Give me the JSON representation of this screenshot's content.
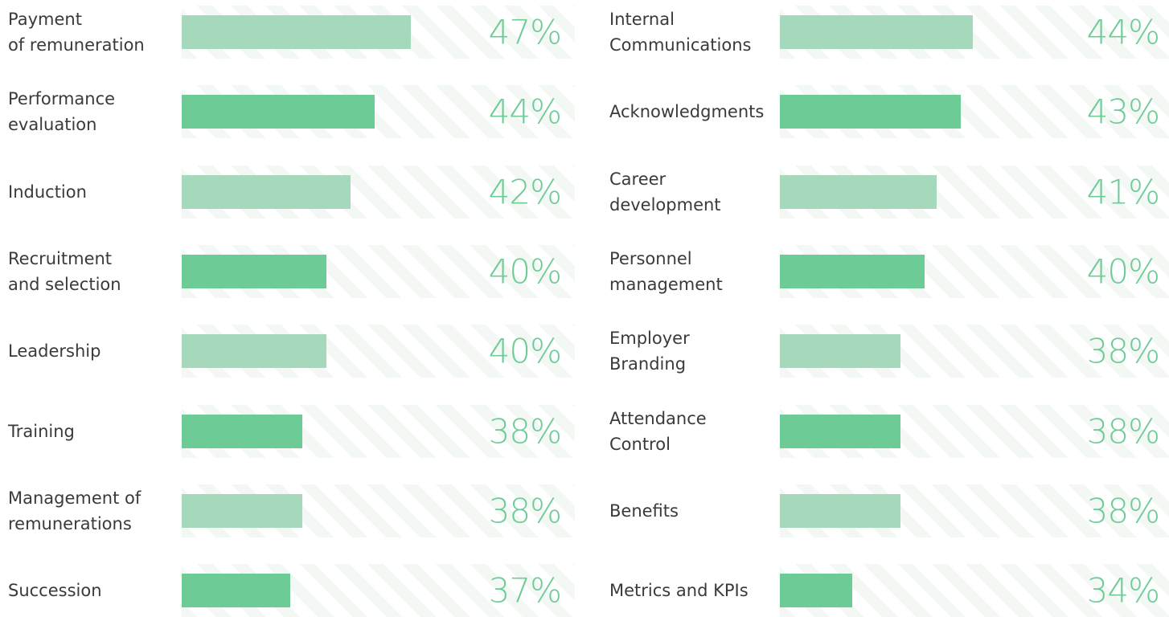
{
  "chart_data": [
    {
      "type": "bar",
      "categories": [
        "Payment\nof remuneration",
        "Performance\nevaluation",
        "Induction",
        "Recruitment\nand selection",
        "Leadership",
        "Training",
        "Management of\nremunerations",
        "Succession"
      ],
      "values": [
        47,
        44,
        42,
        40,
        40,
        38,
        38,
        37
      ],
      "value_labels": [
        "47%",
        "44%",
        "42%",
        "40%",
        "40%",
        "38%",
        "38%",
        "37%"
      ],
      "colors": [
        "#a6d8bb",
        "#6dcb95",
        "#a6d8bb",
        "#6dcb95",
        "#a6d8bb",
        "#6dcb95",
        "#a6d8bb",
        "#6dcb95"
      ],
      "xlim": [
        28,
        48
      ]
    },
    {
      "type": "bar",
      "categories": [
        "Internal\nCommunications",
        "Acknowledgments",
        "Career\ndevelopment",
        "Personnel\nmanagement",
        "Employer\nBranding",
        "Attendance\nControl",
        "Benefits",
        "Metrics and KPIs"
      ],
      "values": [
        44,
        43,
        41,
        40,
        38,
        38,
        38,
        34
      ],
      "value_labels": [
        "44%",
        "43%",
        "41%",
        "40%",
        "38%",
        "38%",
        "38%",
        "34%"
      ],
      "colors": [
        "#a6d8bb",
        "#6dcb95",
        "#a6d8bb",
        "#6dcb95",
        "#a6d8bb",
        "#6dcb95",
        "#a6d8bb",
        "#6dcb95"
      ],
      "xlim": [
        28,
        48
      ]
    }
  ]
}
